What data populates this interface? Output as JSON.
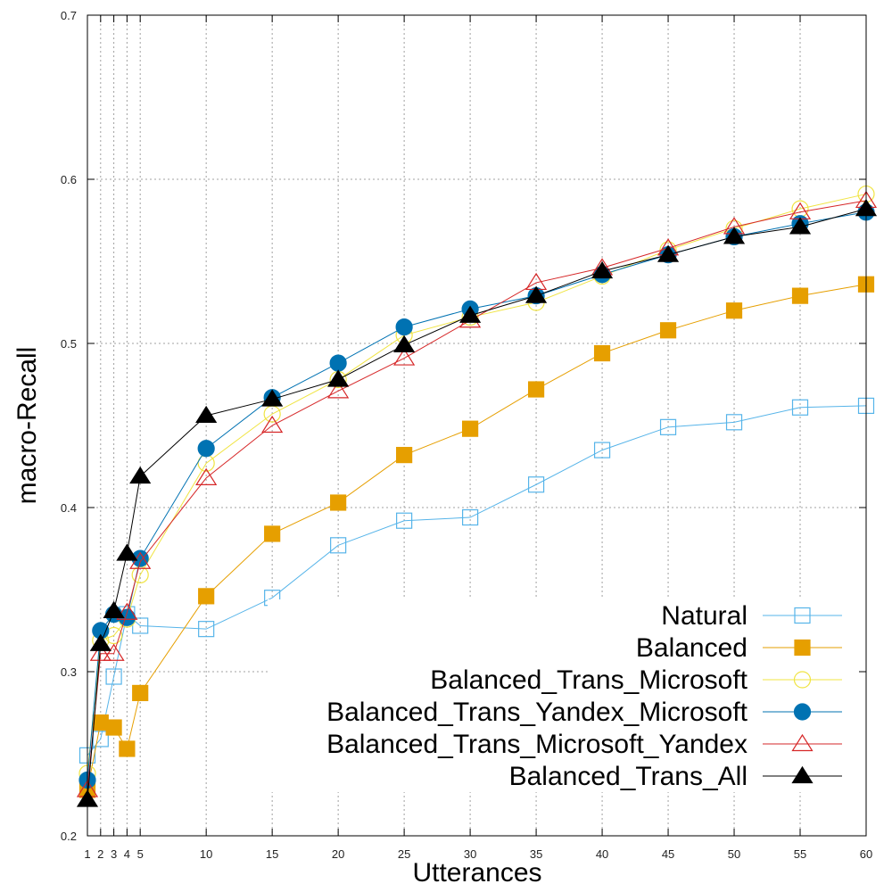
{
  "chart_data": {
    "type": "line",
    "title": "",
    "xlabel": "Utterances",
    "ylabel": "macro-Recall",
    "x": [
      1,
      2,
      3,
      4,
      5,
      10,
      15,
      20,
      25,
      30,
      35,
      40,
      45,
      50,
      55,
      60
    ],
    "x_tick_labels": [
      "1",
      "2",
      "3",
      "4",
      "5",
      "10",
      "15",
      "20",
      "25",
      "30",
      "35",
      "40",
      "45",
      "50",
      "55",
      "60"
    ],
    "xlim": [
      1,
      60
    ],
    "ylim": [
      0.2,
      0.7
    ],
    "y_ticks": [
      0.2,
      0.3,
      0.4,
      0.5,
      0.6,
      0.7
    ],
    "y_tick_labels": [
      "0.2",
      "0.3",
      "0.4",
      "0.5",
      "0.6",
      "0.7"
    ],
    "grid": true,
    "legend_position": "bottom-right",
    "series": [
      {
        "name": "Natural",
        "color": "#56b4e9",
        "marker": "square-open",
        "values": [
          0.249,
          0.259,
          0.297,
          0.335,
          0.328,
          0.326,
          0.345,
          0.377,
          0.392,
          0.394,
          0.414,
          0.435,
          0.449,
          0.452,
          0.461,
          0.462
        ]
      },
      {
        "name": "Balanced",
        "color": "#e69f00",
        "marker": "square-filled",
        "values": [
          0.228,
          0.269,
          0.266,
          0.253,
          0.287,
          0.346,
          0.384,
          0.403,
          0.432,
          0.448,
          0.472,
          0.494,
          0.508,
          0.52,
          0.529,
          0.536
        ]
      },
      {
        "name": "Balanced_Trans_Microsoft",
        "color": "#f0e442",
        "marker": "circle-open",
        "values": [
          0.238,
          0.319,
          0.322,
          0.332,
          0.359,
          0.427,
          0.457,
          0.478,
          0.505,
          0.516,
          0.525,
          0.541,
          0.557,
          0.57,
          0.582,
          0.591
        ]
      },
      {
        "name": "Balanced_Trans_Yandex_Microsoft",
        "color": "#0072b2",
        "marker": "circle-filled",
        "values": [
          0.234,
          0.325,
          0.335,
          0.333,
          0.369,
          0.436,
          0.467,
          0.488,
          0.51,
          0.521,
          0.529,
          0.542,
          0.554,
          0.565,
          0.573,
          0.58
        ]
      },
      {
        "name": "Balanced_Trans_Microsoft_Yandex",
        "color": "#d62728",
        "marker": "triangle-open",
        "values": [
          0.228,
          0.311,
          0.311,
          0.336,
          0.367,
          0.418,
          0.45,
          0.471,
          0.491,
          0.514,
          0.537,
          0.546,
          0.558,
          0.571,
          0.58,
          0.587
        ]
      },
      {
        "name": "Balanced_Trans_All",
        "color": "#000000",
        "marker": "triangle-filled",
        "values": [
          0.222,
          0.317,
          0.337,
          0.372,
          0.419,
          0.456,
          0.466,
          0.478,
          0.499,
          0.517,
          0.529,
          0.544,
          0.554,
          0.565,
          0.571,
          0.582
        ]
      }
    ]
  }
}
